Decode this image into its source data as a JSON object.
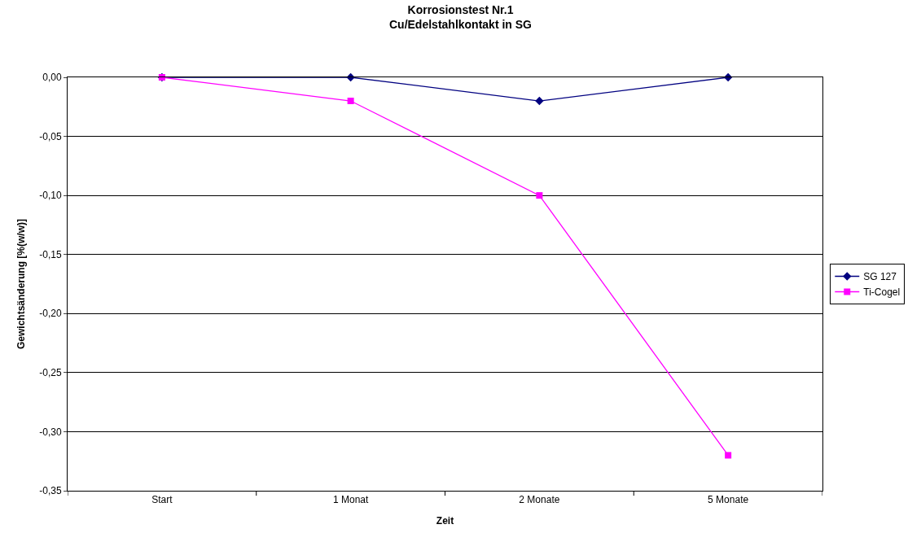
{
  "chart_data": {
    "type": "line",
    "title": "Korrosionstest Nr.1\nCu/Edelstahlkontakt in SG",
    "xlabel": "Zeit",
    "ylabel": "Gewichtsänderung [%(w/w)]",
    "categories": [
      "Start",
      "1 Monat",
      "2 Monate",
      "5 Monate"
    ],
    "series": [
      {
        "name": "SG 127",
        "color": "#000080",
        "marker": "diamond",
        "values": [
          0,
          0,
          -0.02,
          0
        ]
      },
      {
        "name": "Ti-Cogel",
        "color": "#ff00ff",
        "marker": "square",
        "values": [
          0,
          -0.02,
          -0.1,
          -0.32
        ]
      }
    ],
    "ylim": [
      -0.35,
      0
    ],
    "yticks": [
      {
        "value": -0.35,
        "label": "-0,35"
      },
      {
        "value": -0.3,
        "label": "-0,30"
      },
      {
        "value": -0.25,
        "label": "-0,25"
      },
      {
        "value": -0.2,
        "label": "-0,20"
      },
      {
        "value": -0.15,
        "label": "-0,15"
      },
      {
        "value": -0.1,
        "label": "-0,10"
      },
      {
        "value": -0.05,
        "label": "-0,05"
      },
      {
        "value": 0,
        "label": "0,00"
      }
    ],
    "grid": "y",
    "legend": "right",
    "line_style": "solid"
  }
}
